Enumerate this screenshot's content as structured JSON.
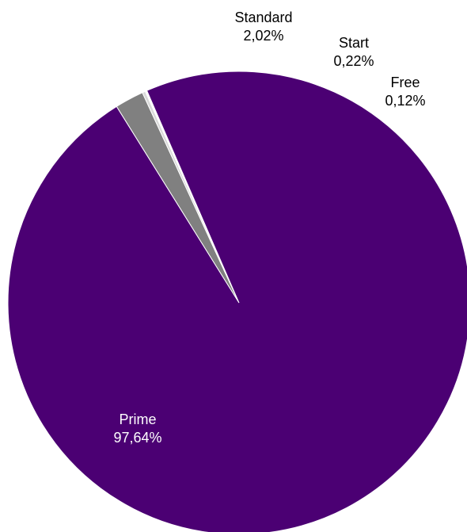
{
  "chart_data": {
    "type": "pie",
    "title": "",
    "slices": [
      {
        "name": "Standard",
        "label": "2,02%",
        "value": 2.02,
        "color": "#808080"
      },
      {
        "name": "Start",
        "label": "0,22%",
        "value": 0.22,
        "color": "#d9d9d9"
      },
      {
        "name": "Free",
        "label": "0,12%",
        "value": 0.12,
        "color": "#ffffff"
      },
      {
        "name": "Prime",
        "label": "97,64%",
        "value": 97.64,
        "color": "#4b0073"
      }
    ]
  }
}
